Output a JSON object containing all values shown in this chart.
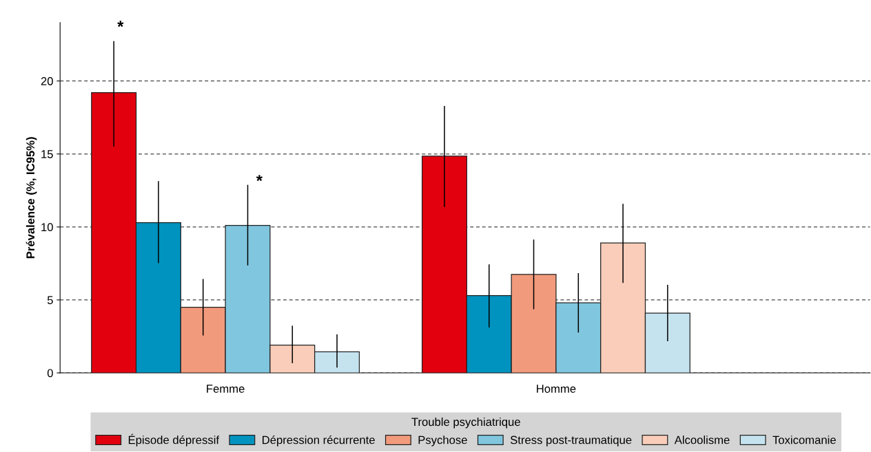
{
  "chart_data": {
    "type": "bar",
    "ylabel": "Prévalence (%, IC95%)",
    "legend_title": "Trouble psychiatrique",
    "legend": "bottom",
    "grid": "y",
    "categories": [
      "Femme",
      "Homme"
    ],
    "annotations": [
      "*",
      "*"
    ],
    "ylim": [
      0,
      24
    ],
    "yticks": [
      0,
      5,
      10,
      15,
      20
    ],
    "series": [
      {
        "name": "Épisode dépressif",
        "color": "#e2000e",
        "values": [
          19.2,
          14.85
        ],
        "errors": [
          [
            15.55,
            22.7
          ],
          [
            11.4,
            18.25
          ]
        ]
      },
      {
        "name": "Dépression récurrente",
        "color": "#0093bf",
        "values": [
          10.3,
          5.3
        ],
        "errors": [
          [
            7.55,
            13.1
          ],
          [
            3.15,
            7.4
          ]
        ]
      },
      {
        "name": "Psychose",
        "color": "#f29a7c",
        "values": [
          4.5,
          6.75
        ],
        "errors": [
          [
            2.6,
            6.4
          ],
          [
            4.4,
            9.1
          ]
        ]
      },
      {
        "name": "Stress post-traumatique",
        "color": "#80c6de",
        "values": [
          10.1,
          4.8
        ],
        "errors": [
          [
            7.4,
            12.85
          ],
          [
            2.8,
            6.8
          ]
        ]
      },
      {
        "name": "Alcoolisme",
        "color": "#f9cdb9",
        "values": [
          1.9,
          8.9
        ],
        "errors": [
          [
            0.7,
            3.2
          ],
          [
            6.2,
            11.55
          ]
        ]
      },
      {
        "name": "Toxicomanie",
        "color": "#c5e3ef",
        "values": [
          1.45,
          4.1
        ],
        "errors": [
          [
            0.4,
            2.6
          ],
          [
            2.2,
            6.0
          ]
        ]
      }
    ]
  }
}
